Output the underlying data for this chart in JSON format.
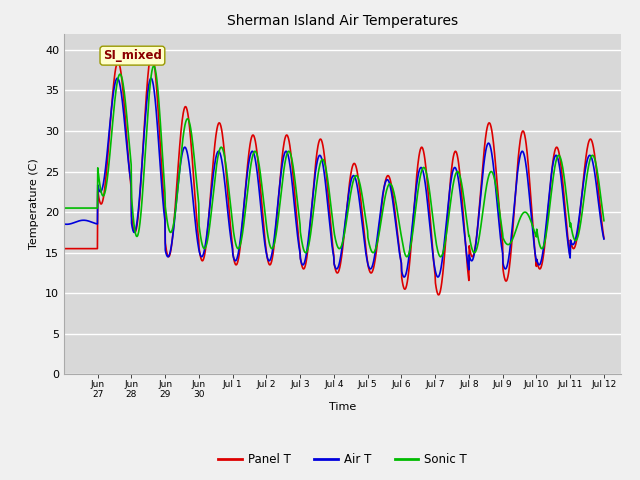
{
  "title": "Sherman Island Air Temperatures",
  "xlabel": "Time",
  "ylabel": "Temperature (C)",
  "ylim": [
    0,
    42
  ],
  "yticks": [
    0,
    5,
    10,
    15,
    20,
    25,
    30,
    35,
    40
  ],
  "annotation_text": "SI_mixed",
  "fig_bg_color": "#f0f0f0",
  "plot_bg_color": "#d8d8d8",
  "panel_t_color": "#dd0000",
  "air_t_color": "#0000dd",
  "sonic_t_color": "#00bb00",
  "line_width": 1.2,
  "tick_labels": [
    "Jun\n27",
    "Jun\n28",
    "Jun\n29",
    "Jun\n30",
    "Jul 1",
    "Jul 2",
    "Jul 3",
    "Jul 4",
    "Jul 5",
    "Jul 6",
    "Jul 7",
    "Jul 8",
    "Jul 9",
    "Jul 10",
    "Jul 11",
    "Jul 12"
  ],
  "tick_label_raw": [
    "Jun 27",
    "Jun 28",
    "Jun 29",
    "Jun 30",
    "Jul 1",
    "Jul 2",
    "Jul 3",
    "Jul 4",
    "Jul 5",
    "Jul 6",
    "Jul 7",
    "Jul 8",
    "Jul 9",
    "Jul 10",
    "Jul 11",
    "Jul 12"
  ],
  "daily_max_panel": [
    15.5,
    38.5,
    39.5,
    33.0,
    31.0,
    29.5,
    29.5,
    29.0,
    26.0,
    24.5,
    28.0,
    27.5,
    31.0,
    30.0,
    28.0,
    29.0
  ],
  "daily_min_panel": [
    15.5,
    21.0,
    17.5,
    14.5,
    14.0,
    13.5,
    13.5,
    13.0,
    12.5,
    12.5,
    10.5,
    9.8,
    14.5,
    11.5,
    13.0,
    15.5
  ],
  "daily_max_air": [
    19.0,
    36.5,
    36.5,
    28.0,
    27.5,
    27.5,
    27.5,
    27.0,
    24.5,
    24.0,
    25.5,
    25.5,
    28.5,
    27.5,
    27.0,
    27.0
  ],
  "daily_min_air": [
    18.5,
    22.5,
    17.5,
    14.5,
    14.5,
    14.0,
    14.0,
    13.5,
    13.0,
    13.0,
    12.0,
    12.0,
    14.0,
    13.0,
    13.5,
    16.0
  ],
  "daily_max_sonic": [
    20.5,
    37.0,
    38.0,
    31.5,
    28.0,
    27.5,
    27.5,
    26.5,
    24.5,
    23.5,
    25.5,
    25.0,
    25.0,
    20.0,
    27.0,
    27.0
  ],
  "daily_min_sonic": [
    20.5,
    22.0,
    17.0,
    17.5,
    15.5,
    15.5,
    15.5,
    15.0,
    15.5,
    15.0,
    14.5,
    14.5,
    15.0,
    16.0,
    15.5,
    16.5
  ]
}
